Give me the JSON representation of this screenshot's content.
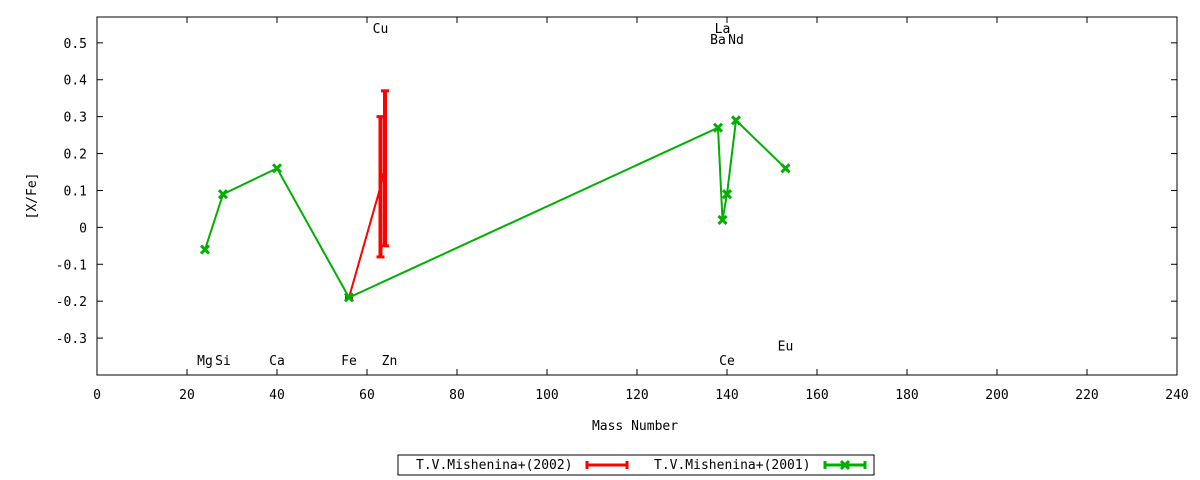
{
  "chart_data": {
    "type": "scatter",
    "xlabel": "Mass Number",
    "ylabel": "[X/Fe]",
    "xlim": [
      0,
      240
    ],
    "ylim": [
      -0.4,
      0.57
    ],
    "xticks": [
      0,
      20,
      40,
      60,
      80,
      100,
      120,
      140,
      160,
      180,
      200,
      220,
      240
    ],
    "yticks": [
      -0.3,
      -0.2,
      -0.1,
      0,
      0.1,
      0.2,
      0.3,
      0.4,
      0.5
    ],
    "ytick_labels": [
      "-0.3",
      "-0.2",
      "-0.1",
      "0",
      "0.1",
      "0.2",
      "0.3",
      "0.4",
      "0.5"
    ],
    "grid": false,
    "legend_position": "bottom-center",
    "element_labels": [
      {
        "text": "Mg",
        "x": 24,
        "y": -0.36
      },
      {
        "text": "Si",
        "x": 28,
        "y": -0.36
      },
      {
        "text": "Ca",
        "x": 40,
        "y": -0.36
      },
      {
        "text": "Fe",
        "x": 56,
        "y": -0.36
      },
      {
        "text": "Zn",
        "x": 65,
        "y": -0.36
      },
      {
        "text": "Cu",
        "x": 63,
        "y": 0.54
      },
      {
        "text": "La",
        "x": 139,
        "y": 0.54
      },
      {
        "text": "Ba",
        "x": 138,
        "y": 0.51
      },
      {
        "text": "Nd",
        "x": 142,
        "y": 0.51
      },
      {
        "text": "Ce",
        "x": 140,
        "y": -0.36
      },
      {
        "text": "Eu",
        "x": 153,
        "y": -0.32
      }
    ],
    "series": [
      {
        "name": "T.V.Mishenina+(2002)",
        "color": "#ff0000",
        "style": "line-errorbars",
        "points": [
          {
            "x": 56,
            "y": -0.19,
            "ylow": -0.19,
            "yhigh": -0.19
          },
          {
            "x": 63,
            "y": 0.11,
            "ylow": -0.08,
            "yhigh": 0.3
          },
          {
            "x": 64,
            "y": 0.16,
            "ylow": -0.05,
            "yhigh": 0.37
          }
        ]
      },
      {
        "name": "T.V.Mishenina+(2001)",
        "color": "#00b000",
        "style": "line-points",
        "points": [
          {
            "x": 24,
            "y": -0.06
          },
          {
            "x": 28,
            "y": 0.09
          },
          {
            "x": 40,
            "y": 0.16
          },
          {
            "x": 56,
            "y": -0.19
          },
          {
            "x": 138,
            "y": 0.27
          },
          {
            "x": 139,
            "y": 0.02
          },
          {
            "x": 140,
            "y": 0.09
          },
          {
            "x": 142,
            "y": 0.29
          },
          {
            "x": 153,
            "y": 0.16
          }
        ]
      }
    ]
  }
}
